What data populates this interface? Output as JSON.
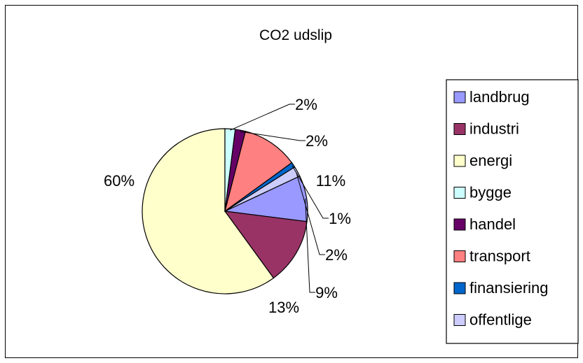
{
  "chart_data": {
    "type": "pie",
    "title": "CO2 udslip",
    "categories": [
      "landbrug",
      "industri",
      "energi",
      "bygge",
      "handel",
      "transport",
      "finansiering",
      "offentlige"
    ],
    "values": [
      9,
      13,
      60,
      2,
      2,
      11,
      1,
      2
    ],
    "data_labels": [
      "9%",
      "13%",
      "60%",
      "2%",
      "2%",
      "11%",
      "1%",
      "2%"
    ],
    "colors": [
      "#9999FF",
      "#993366",
      "#FFFFCC",
      "#CCFFFF",
      "#660066",
      "#FF8080",
      "#0066CC",
      "#CCCCFF"
    ],
    "start_angle_deg": 90,
    "direction": "clockwise",
    "legend_position": "right"
  }
}
